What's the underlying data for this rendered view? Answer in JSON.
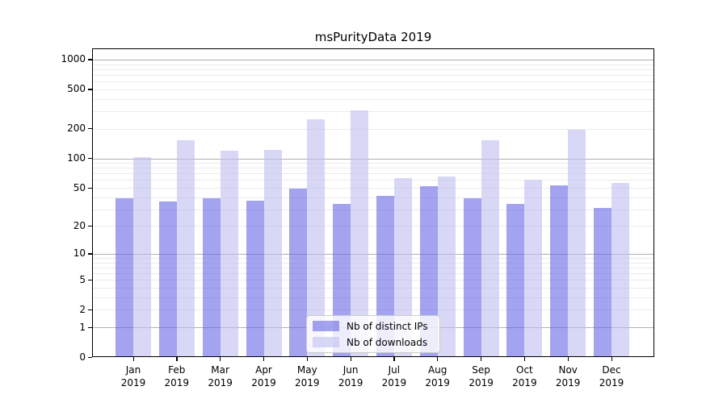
{
  "title": "msPurityData 2019",
  "chart_data": {
    "type": "bar",
    "title": "msPurityData 2019",
    "categories": [
      "Jan",
      "Feb",
      "Mar",
      "Apr",
      "May",
      "Jun",
      "Jul",
      "Aug",
      "Sep",
      "Oct",
      "Nov",
      "Dec"
    ],
    "category_year": "2019",
    "series": [
      {
        "name": "Nb of distinct IPs",
        "color": "#6666e4",
        "alpha": 0.6,
        "values": [
          39,
          36,
          39,
          37,
          49,
          34,
          41,
          52,
          39,
          34,
          53,
          31
        ]
      },
      {
        "name": "Nb of downloads",
        "color": "#bebef0",
        "alpha": 0.6,
        "values": [
          103,
          152,
          119,
          123,
          249,
          306,
          63,
          65,
          153,
          60,
          197,
          56
        ]
      }
    ],
    "xlabel": "",
    "ylabel": "",
    "yscale": "log10(1+x)",
    "ylim": [
      0,
      1300
    ],
    "yticks": [
      0,
      1,
      2,
      5,
      10,
      20,
      50,
      100,
      200,
      500,
      1000
    ],
    "grid": {
      "on": true,
      "major": [
        1,
        10,
        100,
        1000
      ],
      "minor": [
        2,
        3,
        4,
        5,
        6,
        7,
        8,
        9,
        20,
        30,
        40,
        50,
        60,
        70,
        80,
        90,
        200,
        300,
        400,
        500,
        600,
        700,
        800,
        900
      ],
      "major_color": "#b0b0b0",
      "minor_color": "#ebebeb"
    },
    "legend_position": "lower center"
  },
  "legend": {
    "items": [
      {
        "label": "Nb of distinct IPs"
      },
      {
        "label": "Nb of downloads"
      }
    ]
  },
  "colors": {
    "background": "#ffffff",
    "axis": "#000000",
    "text": "#000000",
    "bar_dark_rendered": "#a3a3ef",
    "bar_light_rendered": "#d8d8f6"
  }
}
